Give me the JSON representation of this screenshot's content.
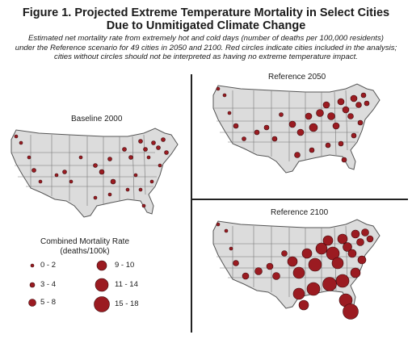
{
  "figure": {
    "title_line1": "Figure 1. Projected Extreme Temperature Mortality in Select Cities",
    "title_line2": "Due to Unmitigated Climate Change",
    "subtitle_line1": "Estimated net mortality rate from extremely hot and cold days (number of deaths per 100,000 residents)",
    "subtitle_line2": "under the Reference scenario for 49 cities in 2050 and 2100. Red circles indicate cities included in the analysis;",
    "subtitle_line3": "cities without circles should not be interpreted as having no extreme temperature impact."
  },
  "panels": {
    "baseline": "Baseline 2000",
    "ref2050": "Reference 2050",
    "ref2100": "Reference 2100"
  },
  "legend": {
    "title_line1": "Combined Mortality Rate",
    "title_line2": "(deaths/100k)",
    "items": [
      "0 - 2",
      "3 - 4",
      "5 - 8",
      "9 - 10",
      "11 - 14",
      "15 - 18"
    ]
  },
  "colors": {
    "circle_fill": "#9b1b21",
    "circle_stroke": "#3a0a0c",
    "land": "#dcdcdc",
    "border": "#555555"
  }
}
